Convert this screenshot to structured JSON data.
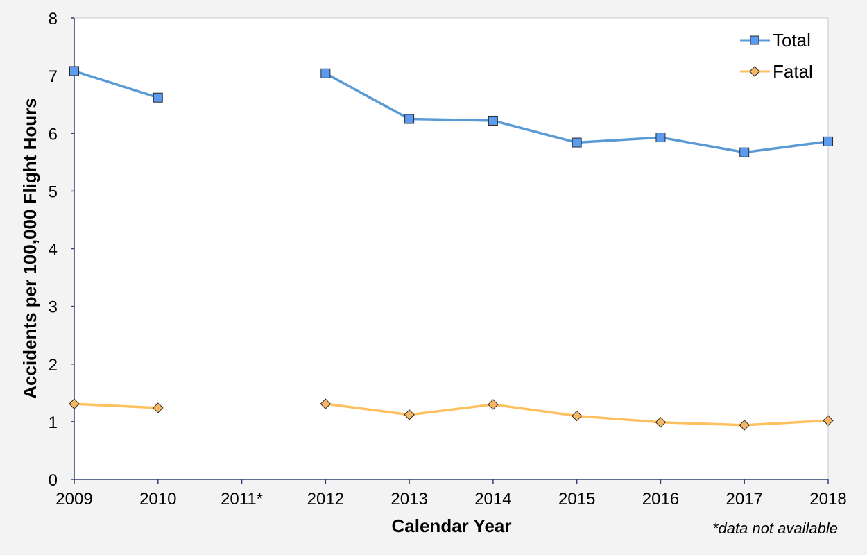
{
  "chart_data": {
    "type": "line",
    "x": [
      "2009",
      "2010",
      "2011*",
      "2012",
      "2013",
      "2014",
      "2015",
      "2016",
      "2017",
      "2018"
    ],
    "series": [
      {
        "name": "Total",
        "color": "#5b9bd5",
        "marker_fill": "#5b9bf0",
        "marker": "square",
        "values": [
          7.08,
          6.62,
          null,
          7.04,
          6.25,
          6.22,
          5.84,
          5.93,
          5.67,
          5.86
        ]
      },
      {
        "name": "Fatal",
        "color": "#ffc060",
        "marker_fill": "#f5b766",
        "marker": "diamond",
        "values": [
          1.31,
          1.24,
          null,
          1.31,
          1.12,
          1.3,
          1.1,
          0.99,
          0.94,
          1.02
        ]
      }
    ],
    "xlabel": "Calendar Year",
    "ylabel": "Accidents per 100,000 Flight Hours",
    "ylim": [
      0,
      8
    ],
    "yticks": [
      "0",
      "1",
      "2",
      "3",
      "4",
      "5",
      "6",
      "7",
      "8"
    ],
    "grid": false,
    "legend_position": "top-right",
    "footnote": "*data not available"
  }
}
